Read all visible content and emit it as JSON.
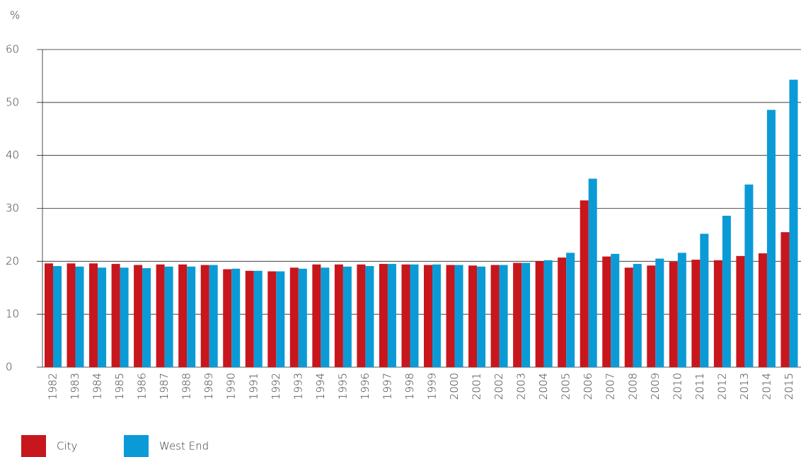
{
  "chart_data": {
    "type": "bar",
    "y_label": "%",
    "categories": [
      "1982",
      "1983",
      "1984",
      "1985",
      "1986",
      "1987",
      "1988",
      "1989",
      "1990",
      "1991",
      "1992",
      "1993",
      "1994",
      "1995",
      "1996",
      "1997",
      "1998",
      "1999",
      "2000",
      "2001",
      "2002",
      "2003",
      "2004",
      "2005",
      "2006",
      "2007",
      "2008",
      "2009",
      "2010",
      "2011",
      "2012",
      "2013",
      "2014",
      "2015"
    ],
    "series": [
      {
        "name": "City",
        "color": "#c8161d",
        "values": [
          19.6,
          19.6,
          19.6,
          19.5,
          19.3,
          19.4,
          19.4,
          19.3,
          18.5,
          18.2,
          18.1,
          18.8,
          19.4,
          19.4,
          19.4,
          19.5,
          19.4,
          19.3,
          19.3,
          19.2,
          19.3,
          19.7,
          20.0,
          20.7,
          31.5,
          20.9,
          18.8,
          19.2,
          19.9,
          20.3,
          20.2,
          21.0,
          21.5,
          25.5
        ]
      },
      {
        "name": "West End",
        "color": "#0a9bd7",
        "values": [
          19.1,
          19.0,
          18.8,
          18.8,
          18.7,
          19.0,
          19.0,
          19.3,
          18.6,
          18.2,
          18.1,
          18.6,
          18.8,
          19.0,
          19.1,
          19.5,
          19.4,
          19.4,
          19.3,
          19.0,
          19.3,
          19.7,
          20.2,
          21.6,
          35.6,
          21.4,
          19.5,
          20.5,
          21.6,
          25.2,
          28.6,
          34.5,
          48.6,
          54.3
        ]
      }
    ],
    "ylim": [
      0,
      60
    ],
    "yticks": [
      0,
      10,
      20,
      30,
      40,
      50,
      60
    ],
    "grid": true,
    "legend": "bottom-left"
  }
}
